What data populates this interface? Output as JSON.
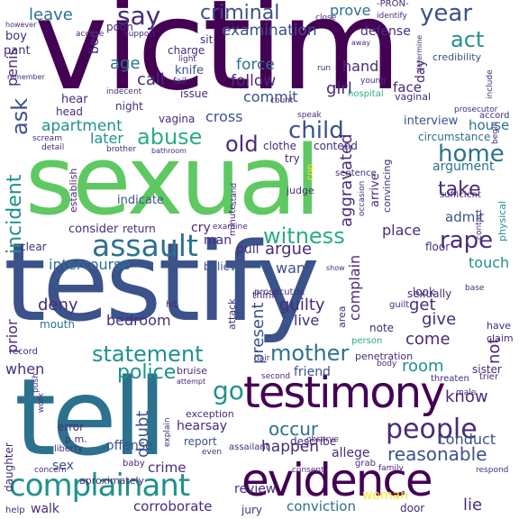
{
  "palette": {
    "dark_purple": "#440154",
    "indigo": "#472c7a",
    "slate_blue": "#3b528b",
    "steel_blue": "#2c728e",
    "teal": "#21918c",
    "sea_green": "#28ae80",
    "green": "#5ec962",
    "lime": "#addc30",
    "yellow": "#fde725"
  },
  "words": {
    "victim": "victim",
    "sexual": "sexual",
    "testify": "testify",
    "tell": "tell",
    "testimony": "testimony",
    "evidence": "evidence",
    "complainant": "complainant",
    "assault": "assault",
    "people": "people",
    "rape": "rape",
    "mother": "mother",
    "statement": "statement",
    "abuse": "abuse",
    "child": "child",
    "witness": "witness",
    "incident": "incident",
    "intercourse": "intercourse",
    "home": "home",
    "take": "take",
    "reasonable": "reasonable",
    "criminal": "criminal",
    "examination": "examination",
    "say": "say",
    "year": "year",
    "act": "act",
    "police": "police",
    "go": "go",
    "occur": "occur",
    "doubt": "doubt",
    "old": "old",
    "ask": "ask",
    "aggravated": "aggravated",
    "argue": "argue",
    "present": "present",
    "complain": "complain",
    "guilty": "guilty",
    "deny": "deny",
    "bedroom": "bedroom",
    "room": "room",
    "know": "know",
    "conduct": "conduct",
    "crime": "crime",
    "corroborate": "corroborate",
    "conviction": "conviction",
    "woman": "woman",
    "lie": "lie",
    "happen": "happen",
    "sex": "sex",
    "leave": "leave",
    "prove": "prove",
    "defense": "defense",
    "credibility": "credibility",
    "force": "force",
    "hand": "hand",
    "follow": "follow",
    "commit": "commit",
    "girl": "girl",
    "face": "face",
    "age": "age",
    "call": "call",
    "night": "night",
    "knife": "knife",
    "cross": "cross",
    "apartment": "apartment",
    "later": "later",
    "house": "house",
    "argument": "argument",
    "admit": "admit",
    "place": "place",
    "touch": "touch",
    "sexually": "sexually",
    "want": "want",
    "get": "get",
    "live": "live",
    "give": "give",
    "come": "come",
    "not": "not",
    "when": "when",
    "prior": "prior",
    "mouth": "mouth",
    "note": "note",
    "friend": "friend",
    "penetration": "penetration",
    "offense": "offense",
    "hearsay": "hearsay",
    "report": "report",
    "review": "review",
    "allege": "allege",
    "describe": "describe",
    "walk": "walk",
    "jury": "jury",
    "door": "door",
    "respond": "respond",
    "man": "man",
    "cry": "cry",
    "pull": "pull",
    "believe": "believe",
    "return": "return",
    "consider": "consider",
    "clear": "clear",
    "indicate": "indicate",
    "establish": "establish",
    "arrive": "arrive",
    "convincing": "convincing",
    "interview": "interview",
    "circumstance": "circumstance",
    "clothe": "clothe",
    "contend": "contend",
    "try": "try",
    "sentence": "sentence",
    "judge": "judge",
    "minute": "minute",
    "physical": "physical",
    "sufficient": "sufficient",
    "hear": "hear",
    "head": "head",
    "penis": "penis",
    "boy": "boy",
    "pant": "pant",
    "bed": "bed",
    "sit": "sit",
    "charge": "charge",
    "issue": "issue",
    "fail": "fail",
    "light": "light",
    "day": "day",
    "detail": "detail",
    "scream": "scream",
    "brother": "brother",
    "vagina": "vagina",
    "vaginal": "vaginal",
    "accord": "accord",
    "hospital": "hospital",
    "young": "young",
    "prosecutor": "prosecutor",
    "count": "count",
    "speak": "speak",
    "stand": "stand",
    "contact": "contact",
    "occasion": "occasion",
    "examine": "examine",
    "floor": "floor",
    "think": "think",
    "attack": "attack",
    "prosecutrix": "prosecutrix",
    "area": "area",
    "look": "look",
    "guilt": "guilt",
    "have": "have",
    "claim": "claim",
    "hit": "hit",
    "record": "record",
    "hair": "hair",
    "person": "person",
    "body": "body",
    "threaten": "threaten",
    "trier": "trier",
    "sister": "sister",
    "bruise": "bruise",
    "second": "second",
    "male": "male",
    "exception": "exception",
    "error": "error",
    "p.m.": "p.m.",
    "liberty": "liberty",
    "daughter": "daughter",
    "concern": "concern",
    "help": "help",
    "baby": "baby",
    "assailant": "assailant",
    "even": "even",
    "observe": "observe",
    "consent": "consent",
    "grab": "grab",
    "family": "family",
    "aproximately": "aproximately",
    "push": "push",
    "work": "work",
    "explain": "explain",
    "pron": "-PRON-",
    "however": "however",
    "accuse": "accuse",
    "support": "support",
    "poon": "poon",
    "close": "close",
    "identify": "identify",
    "away": "away",
    "determine": "determine",
    "remember": "remember",
    "indecent": "indecent",
    "run": "run",
    "include": "include",
    "bathroom": "bathroom",
    "base": "base",
    "begin": "begin",
    "show": "show",
    "cop": "cop",
    "attempt": "attempt"
  }
}
